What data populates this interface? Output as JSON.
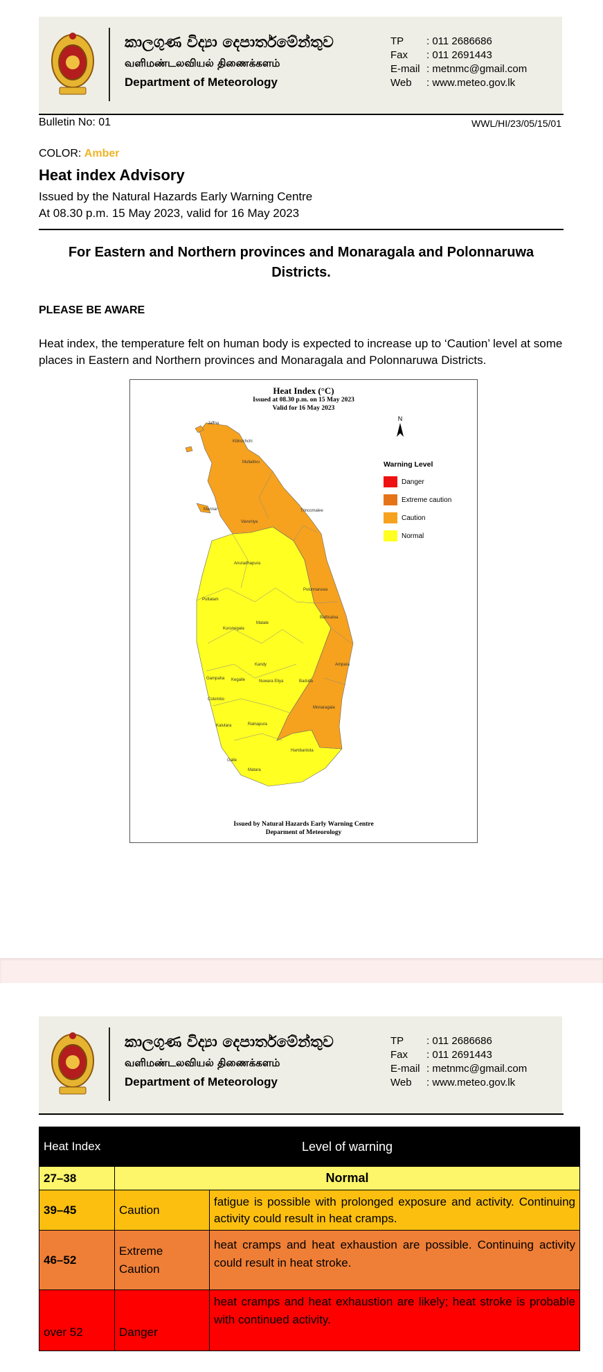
{
  "header": {
    "sinhala_name": "කාලගුණ විද්‍යා දෙපාර්තමේන්තුව",
    "tamil_name": "வளிமண்டலவியல் திணைக்களம்",
    "english_name": "Department of Meteorology",
    "contacts": [
      {
        "label": "TP",
        "value": ": 011 2686686"
      },
      {
        "label": "Fax",
        "value": ": 011 2691443"
      },
      {
        "label": "E-mail",
        "value": ": metnmc@gmail.com"
      },
      {
        "label": "Web",
        "value": ": www.meteo.gov.lk"
      }
    ]
  },
  "bulletin": {
    "number": "Bulletin No: 01",
    "reference": "WWL/HI/23/05/15/01",
    "color_label": "COLOR: ",
    "color_value": "Amber",
    "color_hex": "#f0b429",
    "title": "Heat index Advisory",
    "issued_by": "Issued by the Natural Hazards Early Warning Centre",
    "issued_at": "At 08.30 p.m. 15 May 2023, valid for 16 May 2023",
    "headline": "For Eastern and Northern provinces and Monaragala and Polonnaruwa Districts.",
    "aware": "PLEASE BE AWARE",
    "paragraph": "Heat index, the temperature felt on human body is expected to increase up to ‘Caution’ level at some places in Eastern and Northern provinces and Monaragala and Polonnaruwa Districts."
  },
  "map": {
    "title": "Heat Index (°C)",
    "issued": "Issued at 08.30 p.m. on 15 May 2023",
    "valid": "Valid for  16 May 2023",
    "footer_line1": "Issued by Natural Hazards Early Warning Centre",
    "footer_line2": "Deparment of Meteorology",
    "north_label": "N",
    "legend_title": "Warning Level",
    "legend": [
      {
        "label": "Danger",
        "color": "#ee1111"
      },
      {
        "label": "Extreme caution",
        "color": "#e57418"
      },
      {
        "label": "Caution",
        "color": "#f6a21e"
      },
      {
        "label": "Normal",
        "color": "#ffff22"
      }
    ],
    "districts": [
      "Jaffna",
      "Kilinochchi",
      "Mullaitivu",
      "Mannar",
      "Vavuniya",
      "Trincomalee",
      "Anuradhapura",
      "Puttalam",
      "Polonnaruwa",
      "Batticaloa",
      "Kurunegala",
      "Matale",
      "Kandy",
      "Ampara",
      "Gampaha",
      "Kegalle",
      "Nuwara Eliya",
      "Badulla",
      "Colombo",
      "Monaragala",
      "Kalutara",
      "Ratnapura",
      "Hambantota",
      "Galle",
      "Matara"
    ]
  },
  "table": {
    "header_index": "Heat Index",
    "header_level": "Level of warning",
    "rows": [
      {
        "range": "27–38",
        "level": "Normal",
        "description": "",
        "color": "#fdf56a"
      },
      {
        "range": "39–45",
        "level": "Caution",
        "description": "fatigue is possible with prolonged exposure and activity. Continuing activity could result in heat cramps.",
        "color": "#fcbf10"
      },
      {
        "range": "46–52",
        "level": "Extreme Caution",
        "description": "heat cramps and heat exhaustion are possible. Continuing activity could result in heat stroke.",
        "color": "#ef7f36"
      },
      {
        "range": "over 52",
        "level": "Danger",
        "description": "heat cramps and heat exhaustion are likely; heat stroke is probable with continued activity.",
        "color": "#fe0000"
      }
    ]
  }
}
